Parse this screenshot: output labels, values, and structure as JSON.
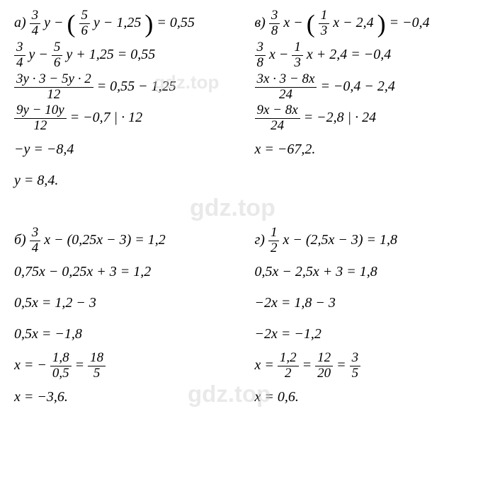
{
  "watermarks": {
    "wm1": "gdz.top",
    "wm2": "gdz.top",
    "wm3": "gdz.top"
  },
  "problems": {
    "a": {
      "label": "а)",
      "eq1_frac1_num": "3",
      "eq1_frac1_den": "4",
      "eq1_var1": " y − ",
      "eq1_frac2_num": "5",
      "eq1_frac2_den": "6",
      "eq1_rest": " y − 1,25",
      "eq1_rhs": " = 0,55",
      "eq2_frac1_num": "3",
      "eq2_frac1_den": "4",
      "eq2_mid1": " y − ",
      "eq2_frac2_num": "5",
      "eq2_frac2_den": "6",
      "eq2_rest": " y + 1,25 = 0,55",
      "eq3_num": "3y · 3 − 5y · 2",
      "eq3_den": "12",
      "eq3_rhs": " = 0,55 − 1,25",
      "eq4_num": "9y − 10y",
      "eq4_den": "12",
      "eq4_rhs": " = −0,7    | · 12",
      "eq5": "−y = −8,4",
      "eq6": "y = 8,4."
    },
    "v": {
      "label": "в)",
      "eq1_frac1_num": "3",
      "eq1_frac1_den": "8",
      "eq1_var1": " x − ",
      "eq1_frac2_num": "1",
      "eq1_frac2_den": "3",
      "eq1_rest": " x − 2,4",
      "eq1_rhs": " = −0,4",
      "eq2_frac1_num": "3",
      "eq2_frac1_den": "8",
      "eq2_mid1": " x − ",
      "eq2_frac2_num": "1",
      "eq2_frac2_den": "3",
      "eq2_rest": " x + 2,4 = −0,4",
      "eq3_num": "3x · 3 − 8x",
      "eq3_den": "24",
      "eq3_rhs": " = −0,4 − 2,4",
      "eq4_num": "9x − 8x",
      "eq4_den": "24",
      "eq4_rhs": " = −2,8   | · 24",
      "eq5": "x = −67,2."
    },
    "b": {
      "label": "б)",
      "eq1_frac1_num": "3",
      "eq1_frac1_den": "4",
      "eq1_rest": " x − (0,25x − 3) = 1,2",
      "eq2": "0,75x − 0,25x + 3 = 1,2",
      "eq3": "0,5x = 1,2 − 3",
      "eq4": "0,5x = −1,8",
      "eq5_pre": "x = −",
      "eq5_frac1_num": "1,8",
      "eq5_frac1_den": "0,5",
      "eq5_mid": " = ",
      "eq5_frac2_num": "18",
      "eq5_frac2_den": "5",
      "eq6": "x = −3,6."
    },
    "g": {
      "label": "г)",
      "eq1_frac1_num": "1",
      "eq1_frac1_den": "2",
      "eq1_rest": " x − (2,5x − 3) = 1,8",
      "eq2": "0,5x − 2,5x + 3 = 1,8",
      "eq3": "−2x = 1,8 − 3",
      "eq4": "−2x = −1,2",
      "eq5_pre": "x = ",
      "eq5_frac1_num": "1,2",
      "eq5_frac1_den": "2",
      "eq5_mid1": " = ",
      "eq5_frac2_num": "12",
      "eq5_frac2_den": "20",
      "eq5_mid2": " = ",
      "eq5_frac3_num": "3",
      "eq5_frac3_den": "5",
      "eq6": "x = 0,6."
    }
  }
}
